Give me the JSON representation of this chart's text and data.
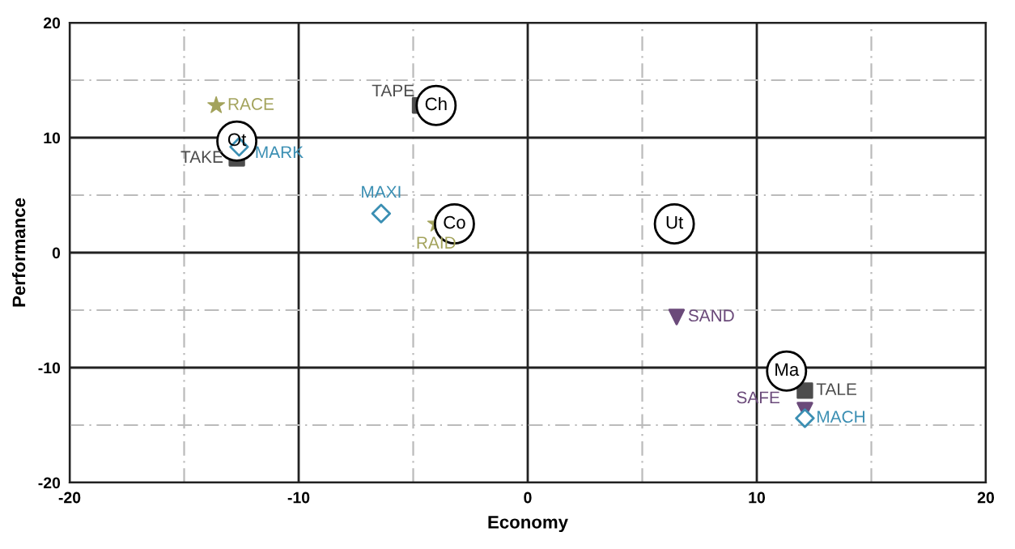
{
  "chart_data": {
    "type": "scatter",
    "xlabel": "Economy",
    "ylabel": "Performance",
    "xlim": [
      -20,
      20
    ],
    "ylim": [
      -20,
      20
    ],
    "xticks": [
      -20,
      {
        "value": -15,
        "label": null
      },
      -10,
      {
        "value": -5,
        "label": null
      },
      0,
      {
        "value": 5,
        "label": null
      },
      10,
      {
        "value": 15,
        "label": null
      },
      20
    ],
    "yticks": [
      -20,
      {
        "value": -15,
        "label": null
      },
      -10,
      {
        "value": -5,
        "label": null
      },
      0,
      {
        "value": 5,
        "label": null
      },
      10,
      {
        "value": 15,
        "label": null
      },
      20
    ],
    "grid": true,
    "series": [
      {
        "marker": "circle",
        "color": "#000000",
        "x": [
          -4.0,
          -12.7,
          -3.2,
          6.4,
          11.3
        ],
        "values": [
          12.8,
          9.7,
          2.5,
          2.5,
          -10.3
        ]
      },
      {
        "marker": "square",
        "color": "#4d4d4d",
        "x": [
          -4.7,
          -12.7,
          12.1
        ],
        "values": [
          12.8,
          8.2,
          -12.0
        ]
      },
      {
        "marker": "star",
        "color": "#a3a35c",
        "x": [
          -13.6,
          -4.0
        ],
        "values": [
          12.8,
          2.5
        ]
      },
      {
        "marker": "diamond",
        "color": "#3b8fb3",
        "x": [
          -12.6,
          -6.4,
          12.1
        ],
        "values": [
          9.2,
          3.4,
          -14.4
        ]
      },
      {
        "marker": "triangle",
        "color": "#6b4a7a",
        "x": [
          6.5,
          12.1
        ],
        "values": [
          -5.6,
          -13.7
        ]
      }
    ],
    "annotations": [
      {
        "text": "Ch",
        "x": -4.0,
        "y": 12.8
      },
      {
        "text": "Ot",
        "x": -12.7,
        "y": 9.7
      },
      {
        "text": "Co",
        "x": -3.2,
        "y": 2.5
      },
      {
        "text": "Ut",
        "x": 6.4,
        "y": 2.5
      },
      {
        "text": "Ma",
        "x": 11.3,
        "y": -10.3
      },
      {
        "text": "TAPE",
        "x": -4.7,
        "y": 12.8
      },
      {
        "text": "TAKE",
        "x": -12.7,
        "y": 8.2
      },
      {
        "text": "TALE",
        "x": 12.1,
        "y": -12.0
      },
      {
        "text": "RACE",
        "x": -13.6,
        "y": 12.8
      },
      {
        "text": "RAID",
        "x": -4.0,
        "y": 2.5
      },
      {
        "text": "MARK",
        "x": -12.6,
        "y": 9.2
      },
      {
        "text": "MAXI",
        "x": -6.4,
        "y": 3.4
      },
      {
        "text": "MACH",
        "x": 12.1,
        "y": -14.4
      },
      {
        "text": "SAND",
        "x": 6.5,
        "y": -5.6
      },
      {
        "text": "SAFE",
        "x": 12.1,
        "y": -13.7
      }
    ]
  }
}
